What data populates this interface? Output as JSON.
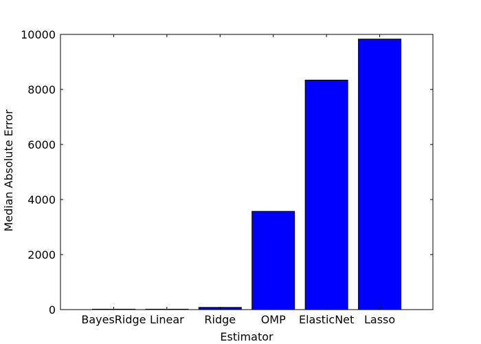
{
  "chart_data": {
    "type": "bar",
    "title": "",
    "xlabel": "Estimator",
    "ylabel": "Median Absolute Error",
    "categories": [
      "BayesRidge",
      "Linear",
      "Ridge",
      "OMP",
      "ElasticNet",
      "Lasso"
    ],
    "values": [
      15,
      15,
      80,
      3570,
      8340,
      9830
    ],
    "ylim": [
      0,
      10000
    ],
    "yticks": [
      0,
      2000,
      4000,
      6000,
      8000,
      10000
    ],
    "grid": false,
    "legend": "none",
    "bar_color": "#0000ff",
    "edge_color": "#000000"
  }
}
